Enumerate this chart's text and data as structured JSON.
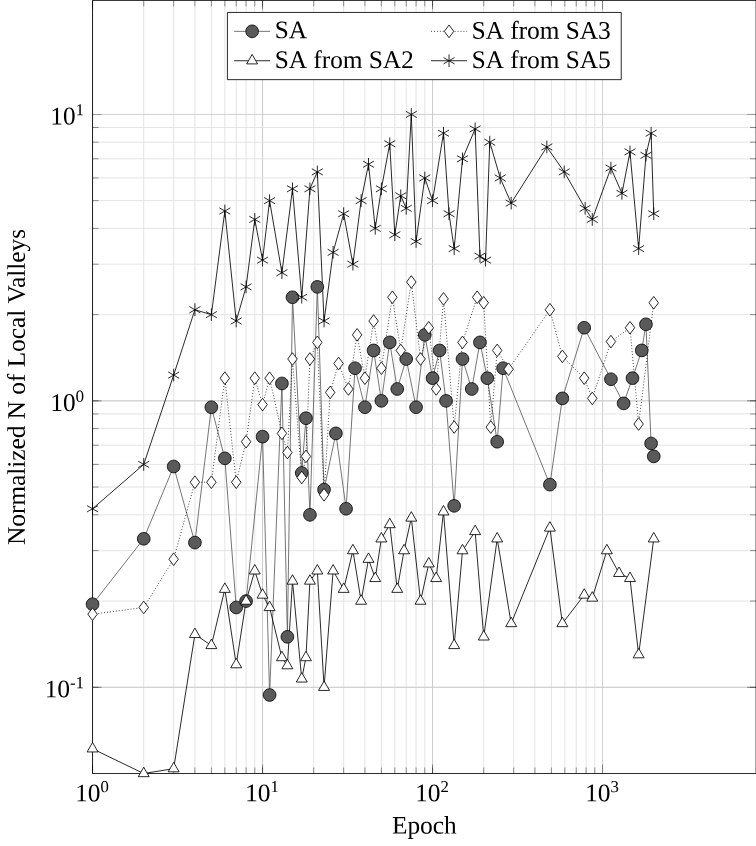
{
  "chart_data": {
    "type": "line",
    "xlabel": "Epoch",
    "ylabel": "Normalized N of Local Valleys",
    "log": "xy",
    "grid": true,
    "legend": "top",
    "xlim": [
      1,
      8000
    ],
    "ylim": [
      0.05,
      25
    ],
    "xticks": [
      {
        "value": 1,
        "label": "10$^{0}$"
      },
      {
        "value": 10,
        "label": "10$^{1}$"
      },
      {
        "value": 100,
        "label": "10$^{2}$"
      },
      {
        "value": 1000,
        "label": "10$^{3}$"
      }
    ],
    "yticks": [
      {
        "value": 0.1,
        "label": "10$^{-1}$"
      },
      {
        "value": 1,
        "label": "10$^{0}$"
      },
      {
        "value": 10,
        "label": "10$^{1}$"
      }
    ],
    "series": [
      {
        "name": "SA",
        "color": "#5a5a5a",
        "marker": "circle",
        "line_style": "solid",
        "x": [
          1,
          2,
          3,
          4,
          5,
          6,
          7,
          8,
          10,
          11,
          13,
          14,
          15,
          17,
          18,
          19,
          21,
          23,
          27,
          31,
          35,
          40,
          45,
          50,
          56,
          62,
          70,
          80,
          90,
          100,
          110,
          120,
          134,
          150,
          170,
          190,
          210,
          240,
          260,
          490,
          580,
          780,
          1120,
          1330,
          1500,
          1700,
          1800,
          1930,
          2000
        ],
        "values": [
          0.195,
          0.33,
          0.59,
          0.32,
          0.95,
          0.63,
          0.19,
          0.2,
          0.75,
          0.094,
          1.15,
          0.15,
          2.3,
          0.56,
          0.87,
          0.4,
          2.5,
          0.49,
          0.77,
          0.42,
          1.3,
          0.95,
          1.5,
          1.0,
          1.6,
          1.1,
          1.4,
          0.95,
          1.7,
          1.2,
          1.5,
          1.0,
          0.43,
          1.4,
          1.1,
          1.6,
          1.2,
          0.72,
          1.3,
          0.51,
          1.02,
          1.8,
          1.19,
          0.98,
          1.2,
          1.5,
          1.85,
          0.71,
          0.64
        ]
      },
      {
        "name": "SA from SA3",
        "color": "#000000",
        "marker": "diamond",
        "line_style": "dotted",
        "x": [
          1,
          2,
          3,
          4,
          5,
          6,
          7,
          8,
          9,
          10,
          11,
          13,
          14,
          15,
          17,
          18,
          19,
          21,
          23,
          25,
          28,
          32,
          36,
          40,
          45,
          50,
          58,
          65,
          75,
          85,
          95,
          105,
          116,
          134,
          150,
          183,
          200,
          220,
          240,
          280,
          490,
          580,
          780,
          870,
          1120,
          1450,
          1630,
          2000
        ],
        "values": [
          0.18,
          0.19,
          0.28,
          0.52,
          0.52,
          1.2,
          0.52,
          0.72,
          1.2,
          0.97,
          1.2,
          0.77,
          0.66,
          1.4,
          0.54,
          0.64,
          1.4,
          1.6,
          0.47,
          1.07,
          1.35,
          1.1,
          1.7,
          1.2,
          1.9,
          1.3,
          2.3,
          1.5,
          2.6,
          1.4,
          1.8,
          1.1,
          2.27,
          0.81,
          1.6,
          2.3,
          2.2,
          0.81,
          1.5,
          1.29,
          2.08,
          1.43,
          1.2,
          1.02,
          1.61,
          1.8,
          0.83,
          2.2
        ]
      },
      {
        "name": "SA from SA2",
        "color": "#000000",
        "marker": "triangle",
        "line_style": "solid",
        "x": [
          1,
          2,
          3,
          4,
          5,
          6,
          7,
          8,
          9,
          10,
          11,
          13,
          14,
          15,
          17,
          18,
          19,
          21,
          23,
          26,
          30,
          34,
          38,
          42,
          46,
          50,
          56,
          62,
          68,
          75,
          85,
          95,
          105,
          116,
          134,
          150,
          178,
          200,
          240,
          290,
          490,
          580,
          780,
          870,
          1060,
          1250,
          1450,
          1630,
          2000
        ],
        "values": [
          0.061,
          0.05,
          0.052,
          0.153,
          0.14,
          0.22,
          0.12,
          0.2,
          0.255,
          0.21,
          0.19,
          0.127,
          0.119,
          0.235,
          0.107,
          0.127,
          0.235,
          0.255,
          0.1,
          0.255,
          0.22,
          0.3,
          0.2,
          0.28,
          0.24,
          0.33,
          0.37,
          0.22,
          0.3,
          0.39,
          0.2,
          0.27,
          0.24,
          0.41,
          0.14,
          0.3,
          0.35,
          0.15,
          0.33,
          0.167,
          0.36,
          0.167,
          0.21,
          0.205,
          0.3,
          0.25,
          0.24,
          0.13,
          0.33
        ]
      },
      {
        "name": "SA from SA5",
        "color": "#000000",
        "marker": "cross",
        "line_style": "solid",
        "x": [
          1,
          2,
          3,
          4,
          5,
          6,
          7,
          8,
          9,
          10,
          11,
          13,
          15,
          17,
          19,
          21,
          23,
          26,
          30,
          34,
          38,
          42,
          46,
          50,
          56,
          60,
          65,
          70,
          75,
          80,
          90,
          100,
          116,
          125,
          134,
          150,
          178,
          190,
          205,
          217,
          250,
          290,
          470,
          595,
          790,
          870,
          1120,
          1300,
          1450,
          1630,
          1800,
          1930,
          2000
        ],
        "values": [
          0.42,
          0.6,
          1.23,
          2.08,
          2.0,
          4.6,
          1.9,
          2.5,
          4.3,
          3.1,
          5.0,
          2.8,
          5.5,
          2.3,
          5.5,
          6.3,
          1.9,
          3.3,
          4.5,
          3.0,
          5.0,
          6.7,
          4.0,
          5.5,
          7.9,
          3.8,
          5.2,
          4.7,
          10,
          3.6,
          6.0,
          5.0,
          8.6,
          4.5,
          3.4,
          7.0,
          8.9,
          3.2,
          3.1,
          8.0,
          6.0,
          4.9,
          7.7,
          6.3,
          4.7,
          4.3,
          6.5,
          5.3,
          7.4,
          3.4,
          7.2,
          8.6,
          4.5
        ]
      }
    ]
  }
}
